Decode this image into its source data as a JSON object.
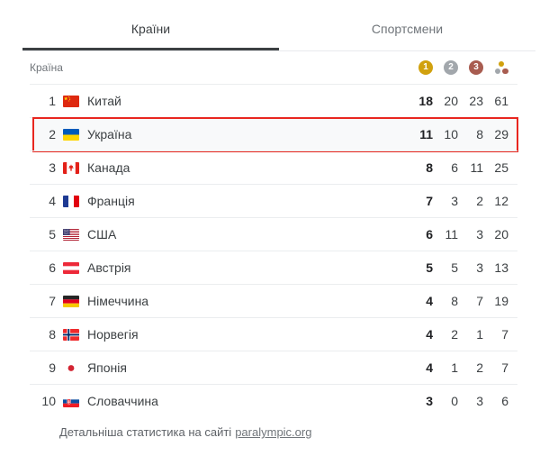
{
  "tabs": [
    {
      "label": "Країни",
      "active": true
    },
    {
      "label": "Спортсмени",
      "active": false
    }
  ],
  "table": {
    "country_column_label": "Країна",
    "medal_header": {
      "gold": "1",
      "silver": "2",
      "bronze": "3"
    },
    "rows": [
      {
        "rank": "1",
        "country": "Китай",
        "flag": "cn",
        "gold": "18",
        "silver": "20",
        "bronze": "23",
        "total": "61",
        "highlighted": false
      },
      {
        "rank": "2",
        "country": "Україна",
        "flag": "ua",
        "gold": "11",
        "silver": "10",
        "bronze": "8",
        "total": "29",
        "highlighted": true
      },
      {
        "rank": "3",
        "country": "Канада",
        "flag": "ca",
        "gold": "8",
        "silver": "6",
        "bronze": "11",
        "total": "25",
        "highlighted": false
      },
      {
        "rank": "4",
        "country": "Франція",
        "flag": "fr",
        "gold": "7",
        "silver": "3",
        "bronze": "2",
        "total": "12",
        "highlighted": false
      },
      {
        "rank": "5",
        "country": "США",
        "flag": "us",
        "gold": "6",
        "silver": "11",
        "bronze": "3",
        "total": "20",
        "highlighted": false
      },
      {
        "rank": "6",
        "country": "Австрія",
        "flag": "at",
        "gold": "5",
        "silver": "5",
        "bronze": "3",
        "total": "13",
        "highlighted": false
      },
      {
        "rank": "7",
        "country": "Німеччина",
        "flag": "de",
        "gold": "4",
        "silver": "8",
        "bronze": "7",
        "total": "19",
        "highlighted": false
      },
      {
        "rank": "8",
        "country": "Норвегія",
        "flag": "no",
        "gold": "4",
        "silver": "2",
        "bronze": "1",
        "total": "7",
        "highlighted": false
      },
      {
        "rank": "9",
        "country": "Японія",
        "flag": "jp",
        "gold": "4",
        "silver": "1",
        "bronze": "2",
        "total": "7",
        "highlighted": false
      },
      {
        "rank": "10",
        "country": "Словаччина",
        "flag": "sk",
        "gold": "3",
        "silver": "0",
        "bronze": "3",
        "total": "6",
        "highlighted": false
      }
    ]
  },
  "footer": {
    "text": "Детальніша статистика на сайті",
    "link_label": "paralympic.org"
  },
  "colors": {
    "gold": "#d1a10e",
    "silver": "#a2a7ac",
    "bronze": "#a85c50",
    "highlight_border": "#e8261f",
    "highlight_bg": "#f8f9fa"
  }
}
